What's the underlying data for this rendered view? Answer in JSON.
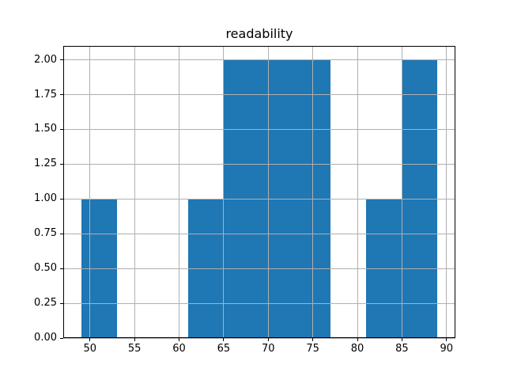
{
  "chart_data": {
    "type": "bar",
    "subtype": "histogram",
    "title": "readability",
    "bin_edges": [
      49,
      53,
      57,
      61,
      65,
      69,
      73,
      77,
      81,
      85,
      89
    ],
    "counts": [
      1,
      0,
      0,
      1,
      2,
      2,
      2,
      0,
      1,
      2
    ],
    "x_ticks": [
      50,
      55,
      60,
      65,
      70,
      75,
      80,
      85,
      90
    ],
    "x_tick_labels": [
      "50",
      "55",
      "60",
      "65",
      "70",
      "75",
      "80",
      "85",
      "90"
    ],
    "y_ticks": [
      0,
      0.25,
      0.5,
      0.75,
      1.0,
      1.25,
      1.5,
      1.75,
      2.0
    ],
    "y_tick_labels": [
      "0.00",
      "0.25",
      "0.50",
      "0.75",
      "1.00",
      "1.25",
      "1.50",
      "1.75",
      "2.00"
    ],
    "xlim": [
      47,
      91
    ],
    "ylim": [
      0,
      2.1
    ],
    "xlabel": "",
    "ylabel": "",
    "bar_color": "#1f77b4",
    "grid": true,
    "grid_color": "#b0b0b0",
    "grid_above_bars": true,
    "background_color": "#ffffff",
    "spine_color": "#000000"
  }
}
